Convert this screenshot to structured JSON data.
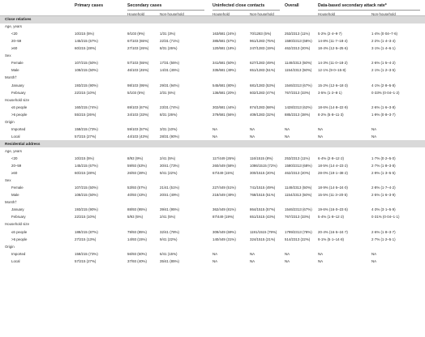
{
  "headers": {
    "primary": "Primary cases",
    "secondary": "Secondary cases",
    "uninfected": "Uninfected close contacts",
    "overall": "Overall",
    "attack": "Data-based secondary attack rate*"
  },
  "subheaders": {
    "sec_household": "Household",
    "sec_nonhousehold": "Non-household",
    "un_household": "Household",
    "un_nonhousehold": "Non-household",
    "at_household": "Household",
    "at_nonhousehold": "Non-household"
  },
  "sections": [
    {
      "title": "Close relatives",
      "groups": [
        {
          "label": "Age, years",
          "rows": [
            {
              "label": "<20",
              "c": [
                "10/215 (5%)",
                "9/103 (9%)",
                "1/31 (3%)",
                "163/681 (24%)",
                "70/1283 (5%)",
                "253/2313 (11%)",
                "5·2% (2·4–9·7)",
                "1·4% (0·04–7·6)"
              ]
            },
            {
              "label": "20–59",
              "c": [
                "145/215 (67%)",
                "67/103 (65%)",
                "22/31 (71%)",
                "385/681 (57%)",
                "961/1283 (75%)",
                "1580/2313 (68%)",
                "14·8% (11·7–18·4)",
                "2·2% (1·4–3·4)"
              ]
            },
            {
              "label": "≥60",
              "c": [
                "60/215 (28%)",
                "27/103 (26%)",
                "8/31 (26%)",
                "120/681 (18%)",
                "247/1283 (19%)",
                "462/2313 (20%)",
                "18·4% (12·5–25·6)",
                "3·1% (1·4–6·1)"
              ]
            }
          ]
        },
        {
          "label": "Sex",
          "rows": [
            {
              "label": "Female",
              "c": [
                "107/215 (50%)",
                "57/103 (55%)",
                "17/31 (55%)",
                "341/681 (50%)",
                "627/1283 (49%)",
                "1149/2313 (50%)",
                "14·3% (11·0–18·2)",
                "2·6% (1·5–4·2)"
              ]
            },
            {
              "label": "Male",
              "c": [
                "108/215 (50%)",
                "46/103 (45%)",
                "14/31 (45%)",
                "335/681 (49%)",
                "651/1283 (51%)",
                "1154/2313 (50%)",
                "12·1% (9·0–15·8)",
                "2·1% (1·2–3·5)"
              ]
            }
          ]
        },
        {
          "label": "Month†",
          "rows": [
            {
              "label": "January",
              "c": [
                "193/215 (90%)",
                "98/103 (95%)",
                "29/31 (94%)",
                "545/681 (80%)",
                "681/1283 (53%)",
                "1546/2313 (67%)",
                "15·2% (12·6–18·3)",
                "4·1% (2·8–5·8)"
              ]
            },
            {
              "label": "February",
              "c": [
                "22/215 (10%)",
                "5/103 (5%)",
                "2/31 (6%)",
                "136/681 (20%)",
                "602/1283 (47%)",
                "767/2313 (33%)",
                "3·5% (1·2–8·1)",
                "0·33% (0·04–1·2)"
              ]
            }
          ]
        },
        {
          "label": "Household size",
          "rows": [
            {
              "label": "≤6 people",
              "c": [
                "160/215 (74%)",
                "69/103 (67%)",
                "23/31 (74%)",
                "302/681 (44%)",
                "874/1283 (68%)",
                "1428/2313 (62%)",
                "18·6% (14·8–22·9)",
                "2·6% (1·6–3·8)"
              ]
            },
            {
              "label": ">6 people",
              "c": [
                "55/215 (26%)",
                "34/103 (33%)",
                "8/31 (26%)",
                "379/681 (56%)",
                "409/1283 (32%)",
                "885/2313 (38%)",
                "8·2% (5·8–11·3)",
                "1·9% (0·8–3·7)"
              ]
            }
          ]
        },
        {
          "label": "Origin",
          "rows": [
            {
              "label": "Imported",
              "c": [
                "158/215 (73%)",
                "59/103 (57%)",
                "3/31 (10%)",
                "NA",
                "NA",
                "NA",
                "NA",
                "NA"
              ]
            },
            {
              "label": "Local",
              "c": [
                "57/215 (27%)",
                "44/103 (43%)",
                "28/31 (90%)",
                "NA",
                "NA",
                "NA",
                "NA",
                "NA"
              ]
            }
          ]
        }
      ]
    },
    {
      "title": "Residential address",
      "groups": [
        {
          "label": "Age, years",
          "rows": [
            {
              "label": "<20",
              "c": [
                "10/215 (5%)",
                "8/93 (9%)",
                "2/41 (5%)",
                "117/449 (26%)",
                "116/1515 (8%)",
                "253/2313 (11%)",
                "6·4% (2·8–12·2)",
                "1·7% (0·2–5·0)"
              ]
            },
            {
              "label": "20–59",
              "c": [
                "145/215 (67%)",
                "59/93 (63%)",
                "30/41 (73%)",
                "260/449 (58%)",
                "1086/1515 (72%)",
                "1580/2313 (68%)",
                "18·5% (14·4–23·2)",
                "2·7% (1·8–3·8)"
              ]
            },
            {
              "label": "≥60",
              "c": [
                "60/215 (28%)",
                "26/93 (28%)",
                "9/41 (22%)",
                "67/449 (15%)",
                "300/1515 (20%)",
                "462/2313 (20%)",
                "28·0% (19·1–38·2)",
                "2·9% (1·3–5·5)"
              ]
            }
          ]
        },
        {
          "label": "Sex",
          "rows": [
            {
              "label": "Female",
              "c": [
                "107/215 (50%)",
                "53/93 (57%)",
                "21/41 (51%)",
                "227/449 (51%)",
                "741/1515 (49%)",
                "1149/2313 (50%)",
                "18·9% (14·5–24·0)",
                "2·8% (1·7–4·2)"
              ]
            },
            {
              "label": "Male",
              "c": [
                "108/215 (50%)",
                "40/93 (43%)",
                "20/41 (49%)",
                "218/449 (49%)",
                "768/1515 (51%)",
                "1154/2313 (50%)",
                "15·5% (11·3–20·5)",
                "2·5% (1·6–3·9)"
              ]
            }
          ]
        },
        {
          "label": "Month†",
          "rows": [
            {
              "label": "January",
              "c": [
                "193/215 (90%)",
                "88/93 (95%)",
                "39/41 (95%)",
                "362/449 (81%)",
                "864/1515 (57%)",
                "1546/2313 (67%)",
                "19·6% (16·0–23·5)",
                "4·3% (3·1–5·9)"
              ]
            },
            {
              "label": "February",
              "c": [
                "22/215 (10%)",
                "5/93 (5%)",
                "2/41 (5%)",
                "87/449 (19%)",
                "651/1515 (43%)",
                "767/2313 (33%)",
                "5·4% (1·8–12·2)",
                "0·31% (0·04–1·1)"
              ]
            }
          ]
        },
        {
          "label": "Household size",
          "rows": [
            {
              "label": "≤6 people",
              "c": [
                "188/215 (87%)",
                "79/93 (85%)",
                "32/41 (78%)",
                "309/449 (69%)",
                "1191/1515 (79%)",
                "1799/2313 (78%)",
                "20·4% (16·5–24·7)",
                "2·6% (1·8–3·7)"
              ]
            },
            {
              "label": ">6 people",
              "c": [
                "27/215 (13%)",
                "14/93 (15%)",
                "9/41 (22%)",
                "140/449 (31%)",
                "324/1515 (21%)",
                "514/2313 (22%)",
                "9·1% (5·1–14·8)",
                "2·7% (1·2–5·1)"
              ]
            }
          ]
        },
        {
          "label": "Origin",
          "rows": [
            {
              "label": "Imported",
              "c": [
                "158/215 (73%)",
                "56/93 (60%)",
                "6/41 (15%)",
                "NA",
                "NA",
                "NA",
                "NA",
                "NA"
              ]
            },
            {
              "label": "Local",
              "c": [
                "57/215 (27%)",
                "37/93 (40%)",
                "35/41 (85%)",
                "NA",
                "NA",
                "NA",
                "NA",
                "NA"
              ]
            }
          ]
        }
      ]
    }
  ]
}
